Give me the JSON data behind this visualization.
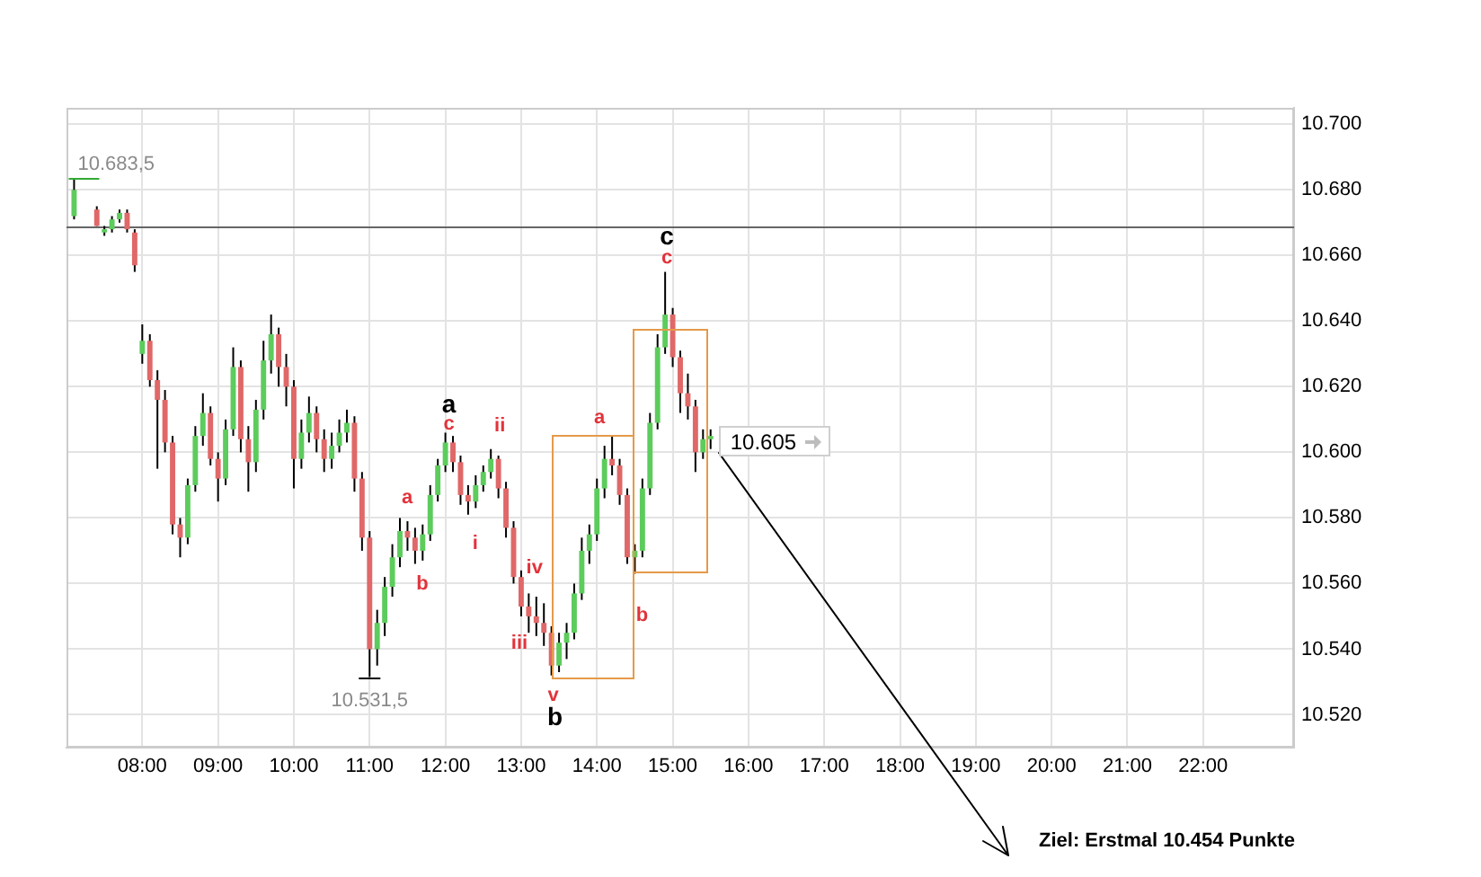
{
  "chart_data": {
    "type": "candlestick",
    "x": [
      7.1,
      7.4,
      7.5,
      7.6,
      7.7,
      7.8,
      7.9,
      8.0,
      8.1,
      8.2,
      8.3,
      8.4,
      8.5,
      8.6,
      8.7,
      8.8,
      8.9,
      9.0,
      9.1,
      9.2,
      9.3,
      9.4,
      9.5,
      9.6,
      9.7,
      9.8,
      9.9,
      10.0,
      10.1,
      10.2,
      10.3,
      10.4,
      10.5,
      10.6,
      10.7,
      10.8,
      10.9,
      11.0,
      11.1,
      11.2,
      11.3,
      11.4,
      11.5,
      11.6,
      11.7,
      11.8,
      11.9,
      12.0,
      12.1,
      12.2,
      12.3,
      12.4,
      12.5,
      12.6,
      12.7,
      12.8,
      12.9,
      13.0,
      13.1,
      13.2,
      13.3,
      13.4,
      13.5,
      13.6,
      13.7,
      13.8,
      13.9,
      14.0,
      14.1,
      14.2,
      14.3,
      14.4,
      14.5,
      14.6,
      14.7,
      14.8,
      14.9,
      15.0,
      15.1,
      15.2,
      15.3,
      15.4,
      15.5
    ],
    "ohlc": [
      [
        10672,
        10683.5,
        10671,
        10680
      ],
      [
        10674,
        10675,
        10669,
        10669
      ],
      [
        10667,
        10669,
        10666,
        10668
      ],
      [
        10668,
        10672,
        10667,
        10671
      ],
      [
        10671,
        10674,
        10670,
        10673
      ],
      [
        10673,
        10674,
        10667,
        10668
      ],
      [
        10667,
        10668,
        10655,
        10657
      ],
      [
        10630,
        10639,
        10627,
        10634
      ],
      [
        10634,
        10636,
        10620,
        10622
      ],
      [
        10622,
        10625,
        10595,
        10616
      ],
      [
        10616,
        10619,
        10600,
        10603
      ],
      [
        10603,
        10605,
        10575,
        10578
      ],
      [
        10578,
        10580,
        10568,
        10574
      ],
      [
        10574,
        10592,
        10572,
        10590
      ],
      [
        10590,
        10608,
        10588,
        10605
      ],
      [
        10605,
        10618,
        10602,
        10612
      ],
      [
        10612,
        10614,
        10596,
        10598
      ],
      [
        10598,
        10600,
        10585,
        10592
      ],
      [
        10592,
        10610,
        10590,
        10607
      ],
      [
        10607,
        10632,
        10605,
        10626
      ],
      [
        10626,
        10628,
        10600,
        10604
      ],
      [
        10604,
        10608,
        10588,
        10597
      ],
      [
        10597,
        10616,
        10594,
        10613
      ],
      [
        10613,
        10634,
        10610,
        10628
      ],
      [
        10628,
        10642,
        10624,
        10636
      ],
      [
        10636,
        10638,
        10620,
        10626
      ],
      [
        10626,
        10630,
        10614,
        10620
      ],
      [
        10620,
        10622,
        10589,
        10598
      ],
      [
        10598,
        10610,
        10595,
        10606
      ],
      [
        10606,
        10617,
        10603,
        10612
      ],
      [
        10612,
        10614,
        10600,
        10604
      ],
      [
        10604,
        10607,
        10594,
        10598
      ],
      [
        10598,
        10606,
        10595,
        10602
      ],
      [
        10602,
        10610,
        10600,
        10606
      ],
      [
        10606,
        10613,
        10603,
        10609
      ],
      [
        10609,
        10611,
        10588,
        10592
      ],
      [
        10592,
        10594,
        10570,
        10574
      ],
      [
        10574,
        10576,
        10531.5,
        10540
      ],
      [
        10540,
        10552,
        10535,
        10548
      ],
      [
        10548,
        10562,
        10544,
        10559
      ],
      [
        10559,
        10572,
        10556,
        10568
      ],
      [
        10568,
        10580,
        10565,
        10576
      ],
      [
        10576,
        10579,
        10570,
        10574
      ],
      [
        10574,
        10577,
        10566,
        10570
      ],
      [
        10570,
        10578,
        10567,
        10575
      ],
      [
        10575,
        10590,
        10573,
        10587
      ],
      [
        10587,
        10598,
        10585,
        10596
      ],
      [
        10596,
        10606,
        10594,
        10603
      ],
      [
        10603,
        10605,
        10594,
        10597
      ],
      [
        10597,
        10599,
        10584,
        10587
      ],
      [
        10587,
        10590,
        10581,
        10585
      ],
      [
        10585,
        10593,
        10583,
        10590
      ],
      [
        10590,
        10596,
        10588,
        10594
      ],
      [
        10594,
        10601,
        10592,
        10598
      ],
      [
        10598,
        10599,
        10586,
        10589
      ],
      [
        10589,
        10591,
        10574,
        10577
      ],
      [
        10577,
        10579,
        10560,
        10562
      ],
      [
        10562,
        10564,
        10550,
        10553
      ],
      [
        10553,
        10557,
        10545,
        10550
      ],
      [
        10550,
        10556,
        10544,
        10548
      ],
      [
        10548,
        10554,
        10541,
        10545
      ],
      [
        10545,
        10547,
        10532,
        10535
      ],
      [
        10535,
        10545,
        10533,
        10542
      ],
      [
        10542,
        10548,
        10537,
        10545
      ],
      [
        10545,
        10560,
        10543,
        10557
      ],
      [
        10557,
        10574,
        10555,
        10570
      ],
      [
        10570,
        10578,
        10566,
        10575
      ],
      [
        10575,
        10592,
        10573,
        10589
      ],
      [
        10589,
        10602,
        10586,
        10598
      ],
      [
        10598,
        10605,
        10593,
        10596
      ],
      [
        10596,
        10598,
        10584,
        10587
      ],
      [
        10587,
        10589,
        10566,
        10568
      ],
      [
        10568,
        10572,
        10563,
        10570
      ],
      [
        10570,
        10592,
        10568,
        10589
      ],
      [
        10589,
        10612,
        10587,
        10609
      ],
      [
        10609,
        10636,
        10607,
        10632
      ],
      [
        10632,
        10655,
        10630,
        10642
      ],
      [
        10642,
        10644,
        10626,
        10629
      ],
      [
        10629,
        10631,
        10612,
        10618
      ],
      [
        10618,
        10624,
        10610,
        10614
      ],
      [
        10614,
        10616,
        10594,
        10600
      ],
      [
        10600,
        10607,
        10598,
        10604
      ],
      [
        10604,
        10607,
        10601,
        10605
      ]
    ],
    "colors": [
      "#5ccc5c",
      "#e06868",
      "#5ccc5c",
      "#5ccc5c",
      "#5ccc5c",
      "#e06868",
      "#e06868",
      "#5ccc5c",
      "#e06868",
      "#e06868",
      "#e06868",
      "#e06868",
      "#e06868",
      "#5ccc5c",
      "#5ccc5c",
      "#5ccc5c",
      "#e06868",
      "#e06868",
      "#5ccc5c",
      "#5ccc5c",
      "#e06868",
      "#e06868",
      "#5ccc5c",
      "#5ccc5c",
      "#5ccc5c",
      "#e06868",
      "#e06868",
      "#e06868",
      "#5ccc5c",
      "#5ccc5c",
      "#e06868",
      "#e06868",
      "#5ccc5c",
      "#5ccc5c",
      "#5ccc5c",
      "#e06868",
      "#e06868",
      "#e06868",
      "#5ccc5c",
      "#5ccc5c",
      "#5ccc5c",
      "#5ccc5c",
      "#e06868",
      "#e06868",
      "#5ccc5c",
      "#5ccc5c",
      "#5ccc5c",
      "#5ccc5c",
      "#e06868",
      "#e06868",
      "#e06868",
      "#5ccc5c",
      "#5ccc5c",
      "#5ccc5c",
      "#e06868",
      "#e06868",
      "#e06868",
      "#e06868",
      "#e06868",
      "#e06868",
      "#e06868",
      "#e06868",
      "#5ccc5c",
      "#5ccc5c",
      "#5ccc5c",
      "#5ccc5c",
      "#5ccc5c",
      "#5ccc5c",
      "#5ccc5c",
      "#e06868",
      "#e06868",
      "#e06868",
      "#5ccc5c",
      "#5ccc5c",
      "#5ccc5c",
      "#5ccc5c",
      "#5ccc5c",
      "#e06868",
      "#e06868",
      "#e06868",
      "#e06868",
      "#5ccc5c",
      "#5ccc5c"
    ],
    "xlim": [
      7.0,
      23.2
    ],
    "xticks": [
      {
        "value": 8,
        "label": "08:00"
      },
      {
        "value": 9,
        "label": "09:00"
      },
      {
        "value": 10,
        "label": "10:00"
      },
      {
        "value": 11,
        "label": "11:00"
      },
      {
        "value": 12,
        "label": "12:00"
      },
      {
        "value": 13,
        "label": "13:00"
      },
      {
        "value": 14,
        "label": "14:00"
      },
      {
        "value": 15,
        "label": "15:00"
      },
      {
        "value": 16,
        "label": "16:00"
      },
      {
        "value": 17,
        "label": "17:00"
      },
      {
        "value": 18,
        "label": "18:00"
      },
      {
        "value": 19,
        "label": "19:00"
      },
      {
        "value": 20,
        "label": "20:00"
      },
      {
        "value": 21,
        "label": "21:00"
      },
      {
        "value": 22,
        "label": "22:00"
      }
    ],
    "ylim": [
      10510,
      10705
    ],
    "yticks": [
      {
        "value": 10520,
        "label": "10.520"
      },
      {
        "value": 10540,
        "label": "10.540"
      },
      {
        "value": 10560,
        "label": "10.560"
      },
      {
        "value": 10580,
        "label": "10.580"
      },
      {
        "value": 10600,
        "label": "10.600"
      },
      {
        "value": 10620,
        "label": "10.620"
      },
      {
        "value": 10640,
        "label": "10.640"
      },
      {
        "value": 10660,
        "label": "10.660"
      },
      {
        "value": 10680,
        "label": "10.680"
      },
      {
        "value": 10700,
        "label": "10.700"
      }
    ],
    "grid": true,
    "ref_lines": [
      {
        "axis": "y",
        "value": 10669,
        "color": "#666666"
      }
    ],
    "annotations": [
      {
        "text": "10.683,5",
        "x": 7.1,
        "y": 10683.5
      },
      {
        "text": "10.531,5",
        "x": 11.0,
        "y": 10531.5
      },
      {
        "text": "a",
        "x": 12.0,
        "y": 10606
      },
      {
        "text": "c",
        "x": 12.0,
        "y": 10606
      },
      {
        "text": "a",
        "x": 11.4,
        "y": 10580
      },
      {
        "text": "b",
        "x": 11.6,
        "y": 10566
      },
      {
        "text": "i",
        "x": 12.3,
        "y": 10581
      },
      {
        "text": "ii",
        "x": 12.6,
        "y": 10601
      },
      {
        "text": "iv",
        "x": 13.2,
        "y": 10556
      },
      {
        "text": "iii",
        "x": 13.0,
        "y": 10550
      },
      {
        "text": "v",
        "x": 13.4,
        "y": 10532
      },
      {
        "text": "b",
        "x": 13.4,
        "y": 10532
      },
      {
        "text": "a",
        "x": 14.2,
        "y": 10605
      },
      {
        "text": "b",
        "x": 14.5,
        "y": 10563
      },
      {
        "text": "c",
        "x": 14.9,
        "y": 10655
      },
      {
        "text": "c",
        "x": 14.9,
        "y": 10655
      },
      {
        "text": "10.605",
        "x": 15.5,
        "y": 10605
      },
      "Ziel: Erstmal 10.454 Punkte"
    ]
  }
}
